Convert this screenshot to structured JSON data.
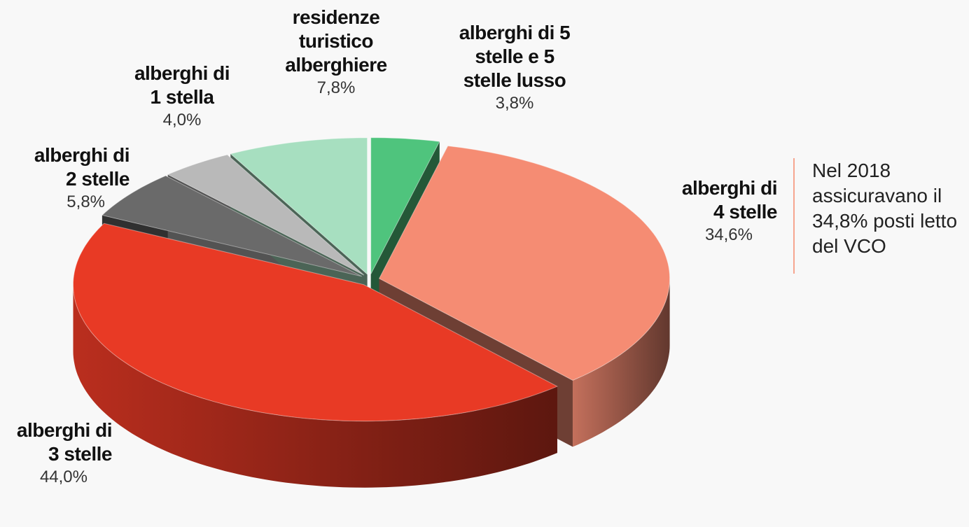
{
  "chart_data": {
    "type": "pie",
    "categories": [
      "alberghi di 5 stelle e 5 stelle lusso",
      "alberghi di 4 stelle",
      "alberghi di 3 stelle",
      "alberghi di 2 stelle",
      "alberghi di 1 stella",
      "residenze turistico alberghiere"
    ],
    "values": [
      3.8,
      34.6,
      44.0,
      5.8,
      4.0,
      7.8
    ],
    "value_labels": [
      "3,8%",
      "34,6%",
      "44,0%",
      "5,8%",
      "4,0%",
      "7,8%"
    ],
    "colors": [
      "#4fc47d",
      "#f58c73",
      "#e83a25",
      "#6a6a6a",
      "#b9b9b9",
      "#a7dfc0"
    ],
    "annotation": "Nel 2018 assicuravano il 34,8% posti letto del VCO"
  }
}
